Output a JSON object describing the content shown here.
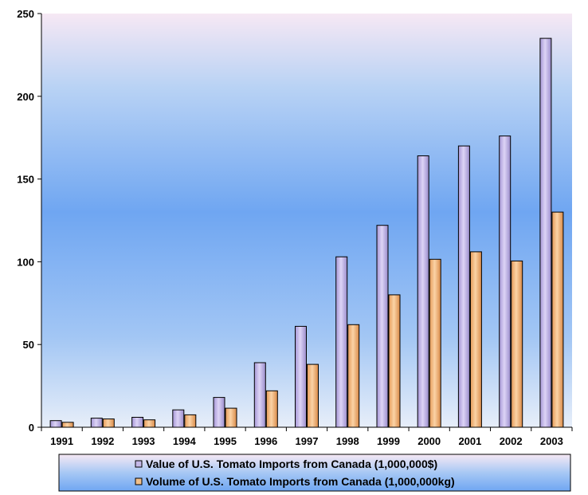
{
  "chart_data": {
    "type": "bar",
    "title": "",
    "xlabel": "",
    "ylabel": "",
    "categories": [
      "1991",
      "1992",
      "1993",
      "1994",
      "1995",
      "1996",
      "1997",
      "1998",
      "1999",
      "2000",
      "2001",
      "2002",
      "2003"
    ],
    "series": [
      {
        "name": "Value of U.S. Tomato Imports from Canada (1,000,000$)",
        "color": "#c4b8e8",
        "values": [
          4,
          5.5,
          6,
          10.5,
          18,
          39,
          61,
          103,
          122,
          164,
          170,
          176,
          235
        ]
      },
      {
        "name": "Volume of U.S. Tomato Imports from Canada (1,000,000kg)",
        "color": "#f2c08a",
        "values": [
          3,
          5,
          4.5,
          7.5,
          11.5,
          22,
          38,
          62,
          80,
          101.5,
          106,
          100.5,
          130
        ]
      }
    ],
    "ylim": [
      0,
      250
    ],
    "yticks": [
      0,
      50,
      100,
      150,
      200,
      250
    ],
    "grid": false,
    "legend": "bottom"
  }
}
